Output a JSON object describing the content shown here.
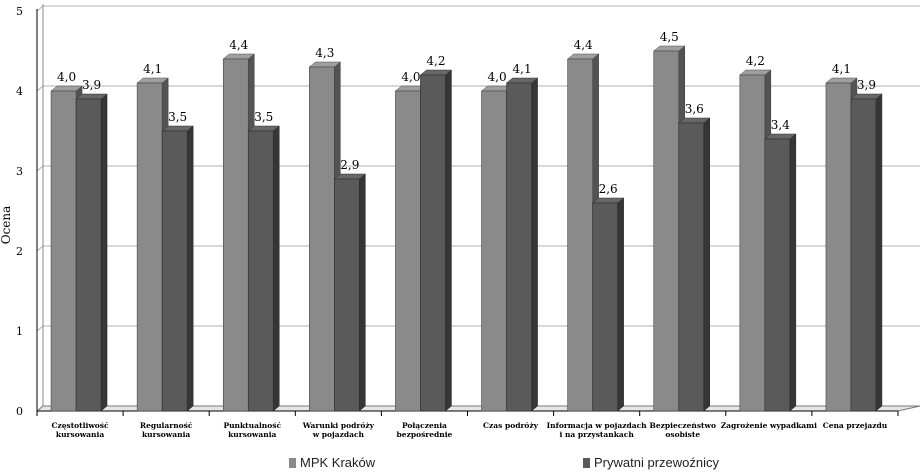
{
  "chart_data": {
    "type": "bar",
    "ylabel": "Ocena",
    "ylim": [
      0,
      5
    ],
    "yticks": [
      "0",
      "1",
      "2",
      "3",
      "4",
      "5"
    ],
    "grid": true,
    "legend_position": "bottom",
    "categories": [
      [
        "Częstotliwość",
        "kursowania"
      ],
      [
        "Regularność",
        "kursowania"
      ],
      [
        "Punktualność",
        "kursowania"
      ],
      [
        "Warunki podróży",
        "w pojazdach"
      ],
      [
        "Połączenia",
        "bezpośrednie"
      ],
      [
        "Czas podróży"
      ],
      [
        "Informacja w pojazdach",
        "i na przystankach"
      ],
      [
        "Bezpieczeństwo",
        "osobiste"
      ],
      [
        "Zagrożenie wypadkami"
      ],
      [
        "Cena przejazdu"
      ]
    ],
    "series": [
      {
        "name": "MPK Kraków",
        "color": "#8a8a8a",
        "values": [
          4.0,
          4.1,
          4.4,
          4.3,
          4.0,
          4.0,
          4.4,
          4.5,
          4.2,
          4.1
        ],
        "labels": [
          "4,0",
          "4,1",
          "4,4",
          "4,3",
          "4,0",
          "4,0",
          "4,4",
          "4,5",
          "4,2",
          "4,1"
        ]
      },
      {
        "name": "Prywatni przewoźnicy",
        "color": "#5a5a5a",
        "values": [
          3.9,
          3.5,
          3.5,
          2.9,
          4.2,
          4.1,
          2.6,
          3.6,
          3.4,
          3.9
        ],
        "labels": [
          "3,9",
          "3,5",
          "3,5",
          "2,9",
          "4,2",
          "4,1",
          "2,6",
          "3,6",
          "3,4",
          "3,9"
        ]
      }
    ]
  }
}
